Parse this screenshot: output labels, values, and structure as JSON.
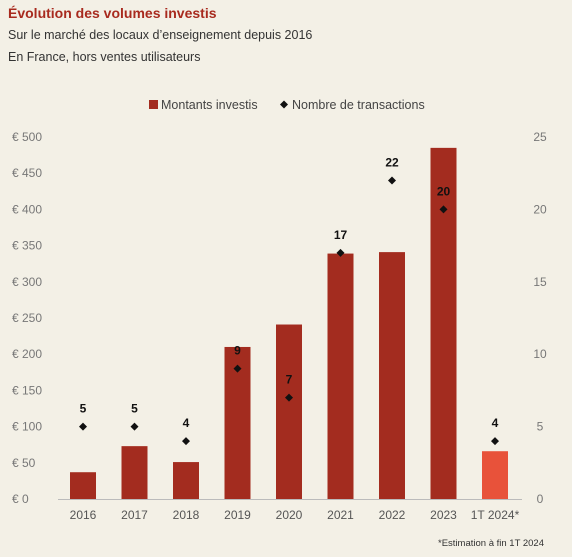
{
  "header": {
    "title": "Évolution des volumes investis",
    "subtitle1": "Sur le marché des locaux d’enseignement depuis 2016",
    "subtitle2": "En France, hors ventes utilisateurs"
  },
  "footnote": "*Estimation à fin 1T 2024",
  "colors": {
    "bar": "#a32c1f",
    "bar_highlight": "#e8523a",
    "marker": "#111111",
    "background": "#f3f0e6"
  },
  "chart_data": {
    "type": "bar",
    "categories": [
      "2016",
      "2017",
      "2018",
      "2019",
      "2020",
      "2021",
      "2022",
      "2023",
      "1T 2024*"
    ],
    "series": [
      {
        "name": "Montants investis",
        "type": "bar",
        "axis": "left",
        "values": [
          37,
          73,
          51,
          210,
          241,
          339,
          341,
          485,
          66
        ]
      },
      {
        "name": "Nombre de transactions",
        "type": "scatter",
        "marker": "diamond",
        "axis": "right",
        "values": [
          5,
          5,
          4,
          9,
          7,
          17,
          22,
          20,
          4
        ],
        "labels": [
          "5",
          "5",
          "4",
          "9",
          "7",
          "17",
          "22",
          "20",
          "4"
        ]
      }
    ],
    "y_left": {
      "range": [
        0,
        500
      ],
      "ticks": [
        0,
        50,
        100,
        150,
        200,
        250,
        300,
        350,
        400,
        450,
        500
      ],
      "tick_labels": [
        "€ 0",
        "€ 50",
        "€ 100",
        "€ 150",
        "€ 200",
        "€ 250",
        "€ 300",
        "€ 350",
        "€ 400",
        "€ 450",
        "€ 500"
      ]
    },
    "y_right": {
      "range": [
        0,
        25
      ],
      "ticks": [
        0,
        5,
        10,
        15,
        20,
        25
      ],
      "tick_labels": [
        "0",
        "5",
        "10",
        "15",
        "20",
        "25"
      ]
    },
    "highlight_category": "1T 2024*",
    "legend_position": "top-center",
    "grid": false
  }
}
